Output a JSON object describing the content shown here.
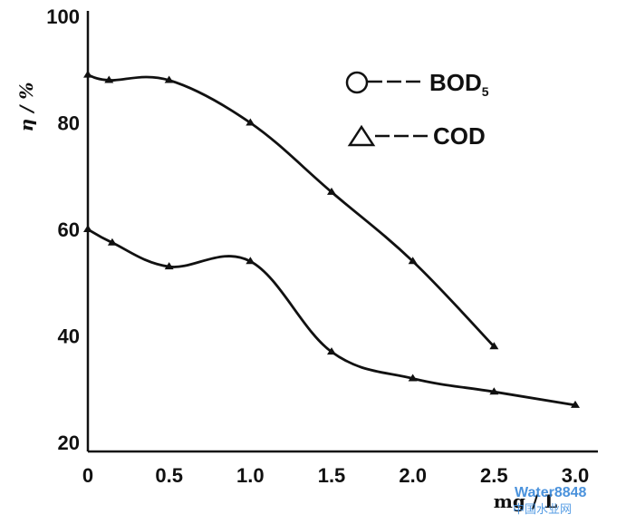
{
  "chart_data": {
    "type": "line",
    "title": "",
    "xlabel": "mg / L",
    "ylabel": "η / %",
    "xlim": [
      0,
      3.0
    ],
    "ylim": [
      20,
      100
    ],
    "x_ticks": [
      "0",
      "0.5",
      "1.0",
      "1.5",
      "2.0",
      "2.5",
      "3.0"
    ],
    "y_ticks": [
      "20",
      "40",
      "60",
      "80",
      "100"
    ],
    "grid": false,
    "legend_position": "top-right",
    "series": [
      {
        "name": "BOD5",
        "legend_label": "BOD",
        "legend_subscript": "5",
        "marker": "circle",
        "x": [
          0,
          0.13,
          0.5,
          1.0,
          1.5,
          2.0,
          2.5
        ],
        "y": [
          89,
          88,
          88,
          80,
          67,
          54,
          38
        ]
      },
      {
        "name": "COD",
        "legend_label": "COD",
        "marker": "triangle",
        "x": [
          0,
          0.15,
          0.5,
          1.0,
          1.5,
          2.0,
          2.5,
          3.0
        ],
        "y": [
          60,
          57.5,
          53,
          54,
          37,
          32,
          29.5,
          27
        ]
      }
    ]
  },
  "watermark": {
    "text": "Water8848",
    "subtext": "中国水业网"
  }
}
